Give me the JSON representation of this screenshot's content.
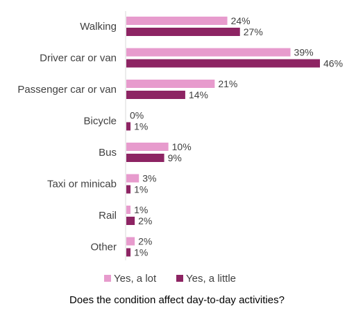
{
  "chart_data": {
    "type": "bar",
    "orientation": "horizontal",
    "categories": [
      "Walking",
      "Driver car or van",
      "Passenger car or van",
      "Bicycle",
      "Bus",
      "Taxi or minicab",
      "Rail",
      "Other"
    ],
    "series": [
      {
        "name": "Yes, a lot",
        "values": [
          24,
          39,
          21,
          0,
          10,
          3,
          1,
          2
        ],
        "color": "#e79bcd"
      },
      {
        "name": "Yes, a little",
        "values": [
          27,
          46,
          14,
          1,
          9,
          1,
          2,
          1
        ],
        "color": "#8d2463"
      }
    ],
    "value_suffix": "%",
    "xlim": [
      0,
      50
    ],
    "xlabel": "",
    "ylabel": "",
    "grid": false,
    "legend_position": "bottom",
    "caption": "Does the condition affect day-to-day activities?"
  }
}
